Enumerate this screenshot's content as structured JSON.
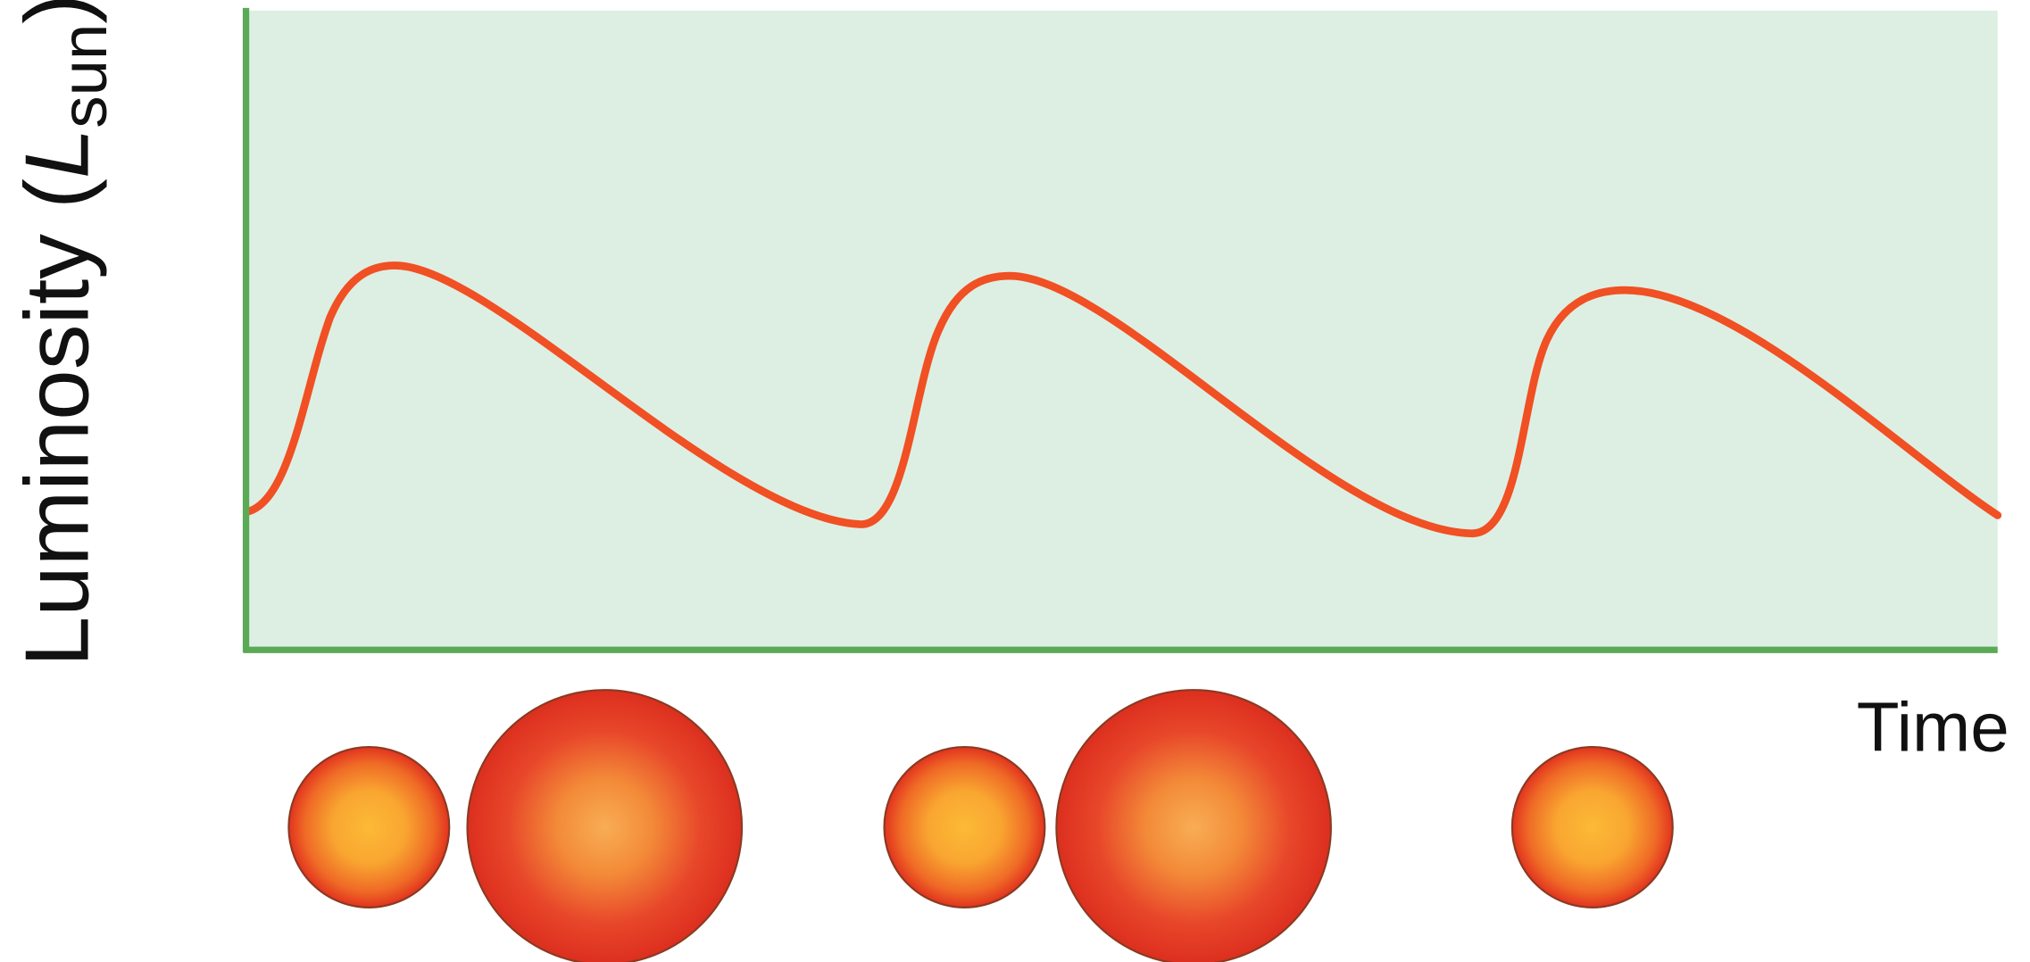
{
  "y_label": {
    "text": "Luminosity (",
    "symbol": "L",
    "subscript": "sun",
    "close": ")"
  },
  "x_label": "Time"
}
